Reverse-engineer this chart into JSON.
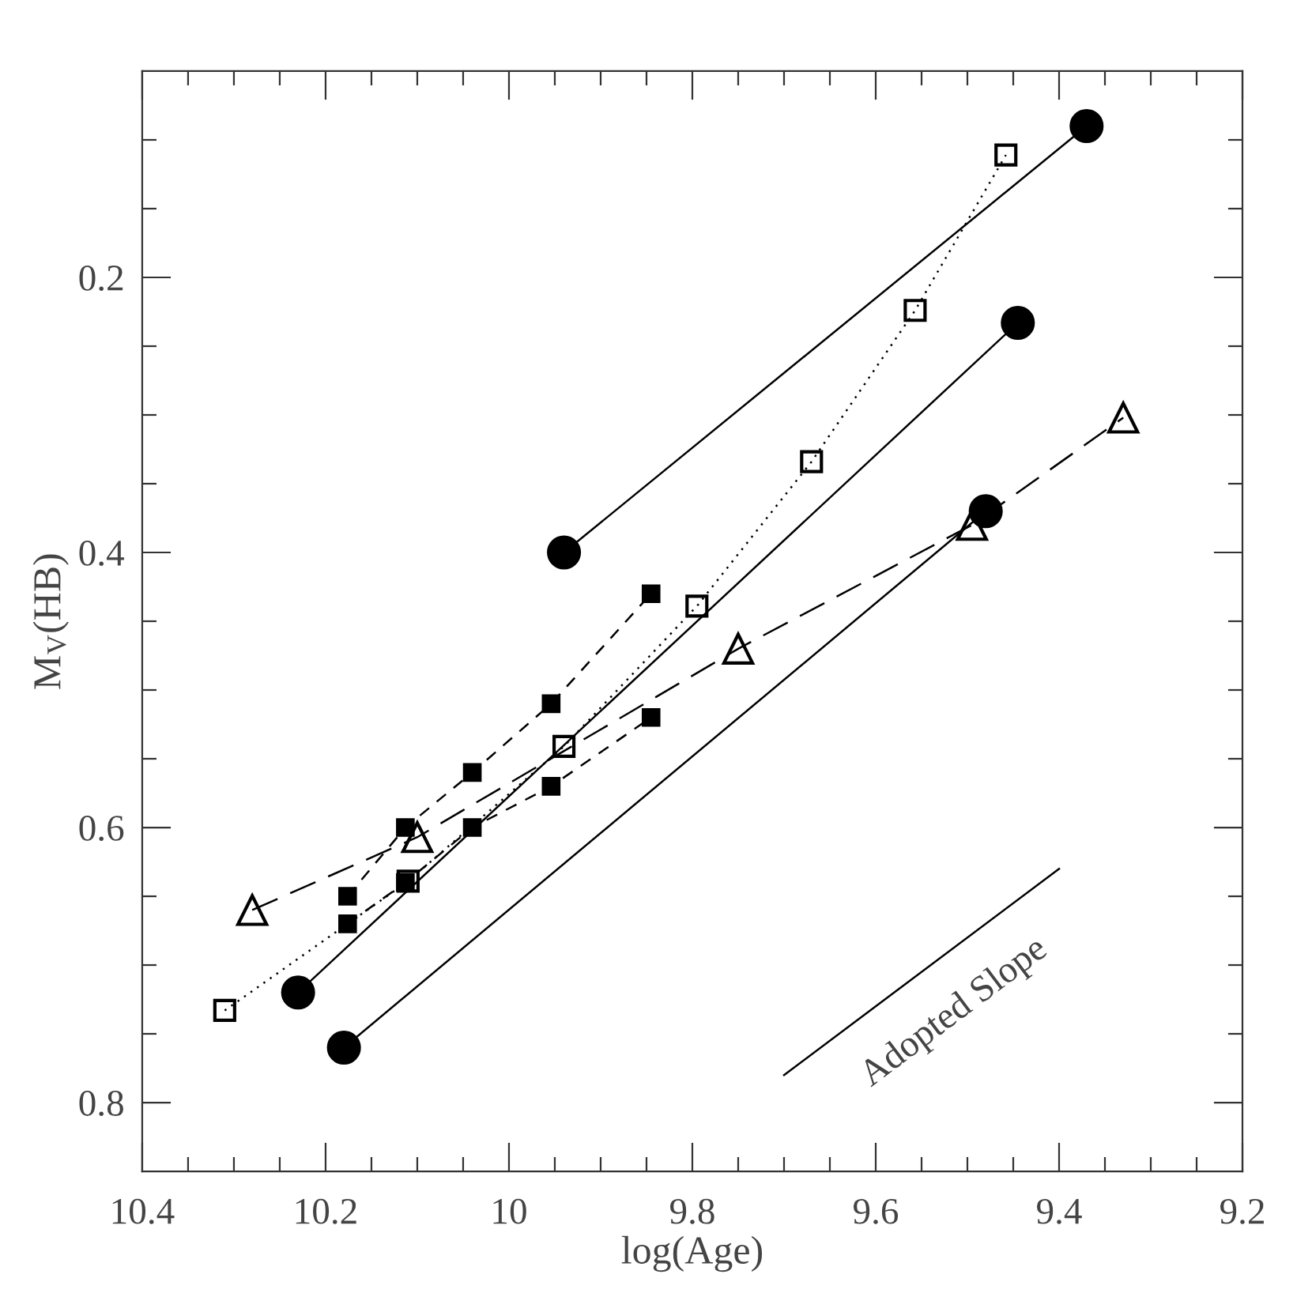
{
  "chart_data": {
    "type": "line",
    "xlabel": "log(Age)",
    "ylabel": "M$_{V}$(HB)",
    "xlim": [
      10.4,
      9.2
    ],
    "ylim": [
      0.85,
      0.05
    ],
    "xticks": [
      10.4,
      {
        "value": 10.35,
        "label": null
      },
      {
        "value": 10.3,
        "label": null
      },
      {
        "value": 10.25,
        "label": null
      },
      10.2,
      {
        "value": 10.15,
        "label": null
      },
      {
        "value": 10.1,
        "label": null
      },
      {
        "value": 10.05,
        "label": null
      },
      10,
      {
        "value": 9.95,
        "label": null
      },
      {
        "value": 9.9,
        "label": null
      },
      {
        "value": 9.85,
        "label": null
      },
      9.8,
      {
        "value": 9.75,
        "label": null
      },
      {
        "value": 9.7,
        "label": null
      },
      {
        "value": 9.65,
        "label": null
      },
      9.6,
      {
        "value": 9.55,
        "label": null
      },
      {
        "value": 9.5,
        "label": null
      },
      {
        "value": 9.45,
        "label": null
      },
      9.4,
      {
        "value": 9.35,
        "label": null
      },
      {
        "value": 9.3,
        "label": null
      },
      {
        "value": 9.25,
        "label": null
      },
      9.2
    ],
    "yticks": [
      {
        "value": 0.1,
        "label": null
      },
      {
        "value": 0.15,
        "label": null
      },
      0.2,
      {
        "value": 0.25,
        "label": null
      },
      {
        "value": 0.3,
        "label": null
      },
      {
        "value": 0.35,
        "label": null
      },
      0.4,
      {
        "value": 0.45,
        "label": null
      },
      {
        "value": 0.5,
        "label": null
      },
      {
        "value": 0.55,
        "label": null
      },
      0.6,
      {
        "value": 0.65,
        "label": null
      },
      {
        "value": 0.7,
        "label": null
      },
      {
        "value": 0.75,
        "label": null
      },
      0.8
    ],
    "series": [
      {
        "color": "#000000",
        "marker": "circle",
        "line_style": "solid",
        "x": [
          9.94,
          9.37
        ],
        "values": [
          0.4,
          0.09
        ]
      },
      {
        "color": "#000000",
        "marker": "circle",
        "line_style": "solid",
        "x": [
          10.23,
          9.445
        ],
        "values": [
          0.72,
          0.233
        ]
      },
      {
        "color": "#000000",
        "marker": "circle",
        "line_style": "solid",
        "x": [
          10.18,
          9.48
        ],
        "values": [
          0.76,
          0.37
        ]
      },
      {
        "color": "#000000",
        "marker": "square",
        "line_style": "dotted",
        "x": [
          10.31,
          10.11,
          9.94,
          9.795,
          9.67,
          9.557,
          9.458
        ],
        "values": [
          0.733,
          0.639,
          0.541,
          0.439,
          0.334,
          0.224,
          0.111
        ]
      },
      {
        "color": "#000000",
        "marker": "square",
        "line_style": "dashed",
        "x": [
          10.176,
          10.113,
          10.04,
          9.954,
          9.845
        ],
        "values": [
          0.65,
          0.6,
          0.56,
          0.51,
          0.43
        ]
      },
      {
        "color": "#000000",
        "marker": "square",
        "line_style": "dashed",
        "x": [
          10.176,
          10.113,
          10.04,
          9.954,
          9.845
        ],
        "values": [
          0.67,
          0.64,
          0.6,
          0.57,
          0.52
        ]
      },
      {
        "color": "#000000",
        "marker": "triangle",
        "line_style": "dashed",
        "x": [
          10.28,
          10.1,
          9.75,
          9.495,
          9.33
        ],
        "values": [
          0.66,
          0.607,
          0.47,
          0.38,
          0.302
        ]
      },
      {
        "color": "#000000",
        "marker": "none",
        "line_style": "solid",
        "x": [
          9.7,
          9.4
        ],
        "values": [
          0.78,
          0.63
        ]
      }
    ],
    "annotations": [
      {
        "text": "Adopted Slope",
        "x": 9.514,
        "y": 0.687
      }
    ]
  }
}
